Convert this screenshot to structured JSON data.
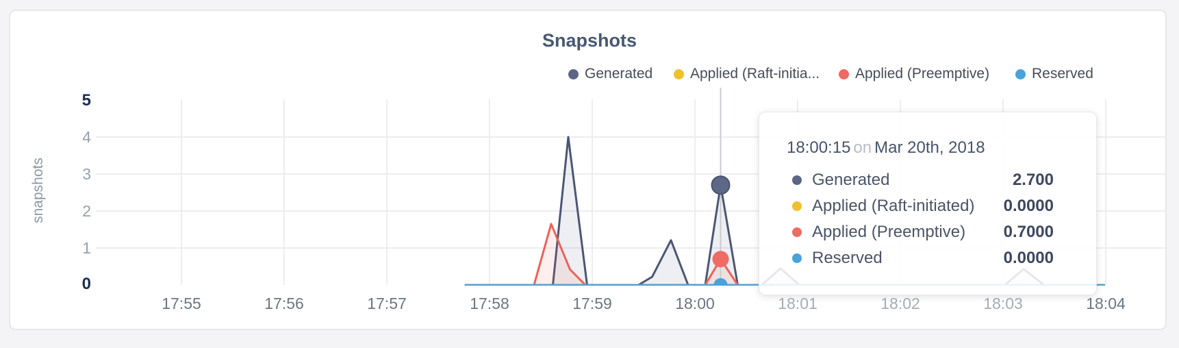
{
  "page": {
    "background": "#f4f4f6"
  },
  "card": {
    "background": "#ffffff",
    "border_color": "#e7e7e9"
  },
  "chart": {
    "title": "Snapshots",
    "y_axis_title": "snapshots",
    "title_color": "#475872"
  },
  "legend": {
    "items": [
      {
        "label": "Generated",
        "color": "#5b6687"
      },
      {
        "label": "Applied (Raft-initia...",
        "color": "#eec12d"
      },
      {
        "label": "Applied (Preemptive)",
        "color": "#ee6a62"
      },
      {
        "label": "Reserved",
        "color": "#47a3d9"
      }
    ]
  },
  "axes": {
    "y_ticks": [
      {
        "label": "5",
        "emphasis": true
      },
      {
        "label": "4",
        "emphasis": false
      },
      {
        "label": "3",
        "emphasis": false
      },
      {
        "label": "2",
        "emphasis": false
      },
      {
        "label": "1",
        "emphasis": false
      },
      {
        "label": "0",
        "emphasis": true
      }
    ],
    "x_ticks": [
      {
        "label": "17:55",
        "t": 0
      },
      {
        "label": "17:56",
        "t": 60
      },
      {
        "label": "17:57",
        "t": 120
      },
      {
        "label": "17:58",
        "t": 180
      },
      {
        "label": "17:59",
        "t": 240
      },
      {
        "label": "18:00",
        "t": 300
      },
      {
        "label": "18:01",
        "t": 360
      },
      {
        "label": "18:02",
        "t": 420
      },
      {
        "label": "18:03",
        "t": 480
      },
      {
        "label": "18:04",
        "t": 540
      }
    ]
  },
  "tooltip": {
    "time": "18:00:15",
    "conjunction": "on",
    "date": "Mar 20th, 2018",
    "rows": [
      {
        "label": "Generated",
        "value": "2.700",
        "color": "#5b6687"
      },
      {
        "label": "Applied (Raft-initiated)",
        "value": "0.0000",
        "color": "#eec12d"
      },
      {
        "label": "Applied (Preemptive)",
        "value": "0.7000",
        "color": "#ee6a62"
      },
      {
        "label": "Reserved",
        "value": "0.0000",
        "color": "#47a3d9"
      }
    ]
  },
  "chart_data": {
    "type": "area",
    "title": "Snapshots",
    "ylabel": "snapshots",
    "ylim": [
      0,
      5
    ],
    "y_gridlines": [
      1,
      2,
      3,
      4
    ],
    "grid": true,
    "grid_color": "#ededee",
    "legend_position": "top-right",
    "x_range_labels": [
      "17:55",
      "18:04"
    ],
    "x_unit": "seconds since 17:55:00",
    "hover": {
      "t": 315,
      "time": "18:00:15",
      "date": "Mar 20th, 2018",
      "line_color": "#c9cbce"
    },
    "series": [
      {
        "name": "Generated",
        "color": "#4a5674",
        "dot_color": "#5d6888",
        "dot_stroke": "#47536e",
        "dot_r": 13,
        "width": 3,
        "fill": "rgba(90,101,134,0.10)",
        "hover_value": 2.7,
        "points": [
          [
            166,
            0
          ],
          [
            217,
            0
          ],
          [
            226,
            4.0
          ],
          [
            237,
            0
          ],
          [
            267,
            0
          ],
          [
            275,
            0.22
          ],
          [
            286,
            1.21
          ],
          [
            296,
            0
          ],
          [
            306,
            0
          ],
          [
            315,
            2.7
          ],
          [
            325,
            0
          ],
          [
            339,
            0
          ],
          [
            350,
            0.45
          ],
          [
            361,
            0
          ],
          [
            481,
            0
          ],
          [
            492,
            0.43
          ],
          [
            504,
            0
          ],
          [
            539,
            0
          ]
        ]
      },
      {
        "name": "Applied (Raft-initiated)",
        "color": "#eec12d",
        "dot_r": 9,
        "width": 2,
        "fill": "none",
        "hover_value": 0,
        "points": [
          [
            166,
            0
          ],
          [
            539,
            0
          ]
        ]
      },
      {
        "name": "Applied (Preemptive)",
        "color": "#ee6157",
        "dot_color": "#ef6b64",
        "dot_r": 12,
        "width": 3,
        "fill": "rgba(239,97,87,0.10)",
        "hover_value": 0.7,
        "points": [
          [
            166,
            0
          ],
          [
            206,
            0
          ],
          [
            216,
            1.65
          ],
          [
            227,
            0.42
          ],
          [
            236,
            0
          ],
          [
            306,
            0
          ],
          [
            315,
            0.7
          ],
          [
            325,
            0
          ],
          [
            539,
            0
          ]
        ]
      },
      {
        "name": "Reserved",
        "color": "#55a0d0",
        "dot_color": "#47a3d9",
        "dot_r": 10,
        "width": 3,
        "fill": "none",
        "hover_value": 0,
        "points": [
          [
            166,
            0
          ],
          [
            539,
            0
          ]
        ]
      }
    ]
  }
}
